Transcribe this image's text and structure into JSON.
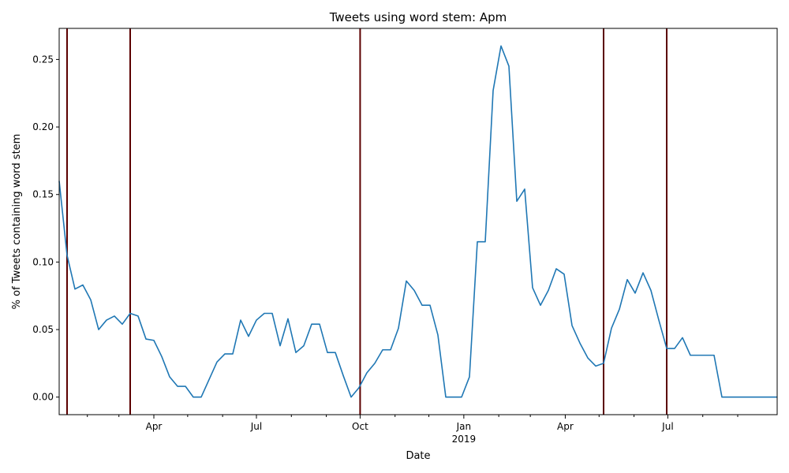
{
  "chart_data": {
    "type": "line",
    "title": "Tweets using word stem: Apm",
    "xlabel": "Date",
    "ylabel": "% of Tweets containing word stem",
    "xlim": [
      "2018-01-07",
      "2019-10-06"
    ],
    "ylim": [
      -0.013,
      0.273
    ],
    "yticks": [
      {
        "value": 0.0,
        "label": "0.00"
      },
      {
        "value": 0.05,
        "label": "0.05"
      },
      {
        "value": 0.1,
        "label": "0.10"
      },
      {
        "value": 0.15,
        "label": "0.15"
      },
      {
        "value": 0.2,
        "label": "0.20"
      },
      {
        "value": 0.25,
        "label": "0.25"
      }
    ],
    "xticks": [
      {
        "date": "2018-04-01",
        "label": "Apr"
      },
      {
        "date": "2018-07-01",
        "label": "Jul"
      },
      {
        "date": "2018-10-01",
        "label": "Oct"
      },
      {
        "date": "2019-01-01",
        "label": "Jan",
        "sublabel": "2019"
      },
      {
        "date": "2019-04-01",
        "label": "Apr"
      },
      {
        "date": "2019-07-01",
        "label": "Jul"
      }
    ],
    "minor_xticks": [
      "2018-02-01",
      "2018-03-01",
      "2018-05-01",
      "2018-06-01",
      "2018-08-01",
      "2018-09-01",
      "2018-11-01",
      "2018-12-01",
      "2019-02-01",
      "2019-03-01",
      "2019-05-01",
      "2019-06-01",
      "2019-08-01",
      "2019-09-01"
    ],
    "vlines": [
      "2018-01-14",
      "2018-03-11",
      "2018-10-01",
      "2019-05-05",
      "2019-06-30"
    ],
    "vline_color": "#5c0000",
    "series": [
      {
        "color": "#1f77b4",
        "x": [
          "2018-01-07",
          "2018-01-14",
          "2018-01-21",
          "2018-01-28",
          "2018-02-04",
          "2018-02-11",
          "2018-02-18",
          "2018-02-25",
          "2018-03-04",
          "2018-03-11",
          "2018-03-18",
          "2018-03-25",
          "2018-04-01",
          "2018-04-08",
          "2018-04-15",
          "2018-04-22",
          "2018-04-29",
          "2018-05-06",
          "2018-05-13",
          "2018-05-20",
          "2018-05-27",
          "2018-06-03",
          "2018-06-10",
          "2018-06-17",
          "2018-06-24",
          "2018-07-01",
          "2018-07-08",
          "2018-07-15",
          "2018-07-22",
          "2018-07-29",
          "2018-08-05",
          "2018-08-12",
          "2018-08-19",
          "2018-08-26",
          "2018-09-02",
          "2018-09-09",
          "2018-09-16",
          "2018-09-23",
          "2018-09-30",
          "2018-10-07",
          "2018-10-14",
          "2018-10-21",
          "2018-10-28",
          "2018-11-04",
          "2018-11-11",
          "2018-11-18",
          "2018-11-25",
          "2018-12-02",
          "2018-12-09",
          "2018-12-16",
          "2018-12-23",
          "2018-12-30",
          "2019-01-06",
          "2019-01-13",
          "2019-01-20",
          "2019-01-27",
          "2019-02-03",
          "2019-02-10",
          "2019-02-17",
          "2019-02-24",
          "2019-03-03",
          "2019-03-10",
          "2019-03-17",
          "2019-03-24",
          "2019-03-31",
          "2019-04-07",
          "2019-04-14",
          "2019-04-21",
          "2019-04-28",
          "2019-05-05",
          "2019-05-12",
          "2019-05-19",
          "2019-05-26",
          "2019-06-02",
          "2019-06-09",
          "2019-06-16",
          "2019-06-23",
          "2019-06-30",
          "2019-07-07",
          "2019-07-14",
          "2019-07-21",
          "2019-07-28",
          "2019-08-04",
          "2019-08-11",
          "2019-08-18",
          "2019-08-25",
          "2019-09-01",
          "2019-09-08",
          "2019-09-15",
          "2019-09-22",
          "2019-09-29",
          "2019-10-06"
        ],
        "y": [
          0.16,
          0.105,
          0.08,
          0.083,
          0.072,
          0.05,
          0.057,
          0.06,
          0.054,
          0.062,
          0.06,
          0.043,
          0.042,
          0.03,
          0.015,
          0.008,
          0.008,
          0.0,
          0.0,
          0.013,
          0.026,
          0.032,
          0.032,
          0.057,
          0.045,
          0.057,
          0.062,
          0.062,
          0.038,
          0.058,
          0.033,
          0.038,
          0.054,
          0.054,
          0.033,
          0.033,
          0.016,
          0.0,
          0.007,
          0.018,
          0.025,
          0.035,
          0.035,
          0.051,
          0.086,
          0.079,
          0.068,
          0.068,
          0.046,
          0.0,
          0.0,
          0.0,
          0.015,
          0.115,
          0.115,
          0.227,
          0.26,
          0.245,
          0.145,
          0.154,
          0.081,
          0.068,
          0.079,
          0.095,
          0.091,
          0.053,
          0.04,
          0.029,
          0.023,
          0.025,
          0.051,
          0.065,
          0.087,
          0.077,
          0.092,
          0.079,
          0.057,
          0.036,
          0.036,
          0.044,
          0.031,
          0.031,
          0.031,
          0.031,
          0.0,
          0.0,
          0.0,
          0.0,
          0.0,
          0.0,
          0.0,
          0.0
        ]
      }
    ],
    "grid": false,
    "legend": "none"
  }
}
